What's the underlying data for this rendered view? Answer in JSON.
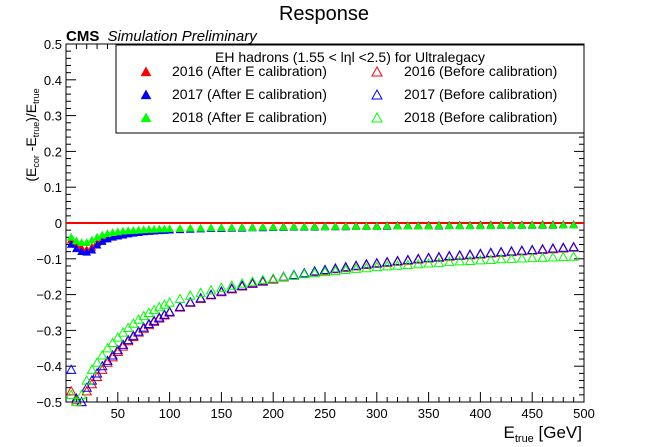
{
  "chart_data": {
    "type": "scatter",
    "title": "Response",
    "experiment": "CMS",
    "subtitle": "Simulation Preliminary",
    "legend_header": "EH hadrons (1.55 < lηl <2.5) for Ultralegacy",
    "xlabel_main": "E",
    "xlabel_sub": "true",
    "xlabel_unit": " [GeV]",
    "ylabel": "(E_cor-E_true)/E_true",
    "xlim": [
      0,
      500
    ],
    "ylim": [
      -0.5,
      0.5
    ],
    "xticks": [
      50,
      100,
      150,
      200,
      250,
      300,
      350,
      400,
      450,
      500
    ],
    "yticks": [
      -0.5,
      -0.4,
      -0.3,
      -0.2,
      -0.1,
      0,
      0.1,
      0.2,
      0.3,
      0.4,
      0.5
    ],
    "ytick_labels": [
      "−0.5",
      "−0.4",
      "−0.3",
      "−0.2",
      "−0.1",
      "0",
      "0.1",
      "0.2",
      "0.3",
      "0.4",
      "0.5"
    ],
    "reference_line": {
      "y": 0,
      "color": "#ff0000"
    },
    "legend_position": "top-right",
    "grid": false,
    "series": [
      {
        "name": "2016 (After E calibration)",
        "color": "#ff0000",
        "marker": "filled-triangle",
        "x": [
          5,
          10,
          15,
          20,
          25,
          30,
          35,
          40,
          45,
          50,
          55,
          60,
          65,
          70,
          75,
          80,
          85,
          90,
          95,
          100,
          110,
          120,
          130,
          140,
          150,
          160,
          170,
          180,
          190,
          200,
          210,
          220,
          230,
          240,
          250,
          260,
          270,
          280,
          290,
          300,
          310,
          320,
          330,
          340,
          350,
          360,
          370,
          380,
          390,
          400,
          410,
          420,
          430,
          440,
          450,
          460,
          470,
          480,
          490
        ],
        "y": [
          -0.048,
          -0.06,
          -0.07,
          -0.075,
          -0.068,
          -0.055,
          -0.046,
          -0.04,
          -0.036,
          -0.033,
          -0.03,
          -0.028,
          -0.026,
          -0.024,
          -0.022,
          -0.021,
          -0.02,
          -0.019,
          -0.018,
          -0.017,
          -0.016,
          -0.015,
          -0.015,
          -0.014,
          -0.013,
          -0.013,
          -0.012,
          -0.012,
          -0.011,
          -0.011,
          -0.01,
          -0.01,
          -0.01,
          -0.009,
          -0.009,
          -0.009,
          -0.008,
          -0.008,
          -0.008,
          -0.008,
          -0.007,
          -0.007,
          -0.007,
          -0.007,
          -0.006,
          -0.006,
          -0.006,
          -0.006,
          -0.006,
          -0.005,
          -0.005,
          -0.005,
          -0.005,
          -0.005,
          -0.005,
          -0.004,
          -0.004,
          -0.004,
          -0.004
        ]
      },
      {
        "name": "2017 (After E calibration)",
        "color": "#0000ff",
        "marker": "filled-triangle",
        "x": [
          5,
          10,
          15,
          20,
          25,
          30,
          35,
          40,
          45,
          50,
          55,
          60,
          65,
          70,
          75,
          80,
          85,
          90,
          95,
          100,
          110,
          120,
          130,
          140,
          150,
          160,
          170,
          180,
          190,
          200,
          210,
          220,
          230,
          240,
          250,
          260,
          270,
          280,
          290,
          300,
          310,
          320,
          330,
          340,
          350,
          360,
          370,
          380,
          390,
          400,
          410,
          420,
          430,
          440,
          450,
          460,
          470,
          480,
          490
        ],
        "y": [
          -0.06,
          -0.072,
          -0.08,
          -0.082,
          -0.076,
          -0.062,
          -0.052,
          -0.045,
          -0.04,
          -0.037,
          -0.034,
          -0.031,
          -0.029,
          -0.027,
          -0.025,
          -0.024,
          -0.023,
          -0.022,
          -0.021,
          -0.02,
          -0.019,
          -0.018,
          -0.017,
          -0.016,
          -0.016,
          -0.015,
          -0.015,
          -0.014,
          -0.014,
          -0.013,
          -0.013,
          -0.012,
          -0.012,
          -0.012,
          -0.011,
          -0.011,
          -0.011,
          -0.01,
          -0.01,
          -0.01,
          -0.01,
          -0.009,
          -0.009,
          -0.009,
          -0.009,
          -0.009,
          -0.008,
          -0.008,
          -0.008,
          -0.008,
          -0.008,
          -0.007,
          -0.007,
          -0.007,
          -0.007,
          -0.007,
          -0.007,
          -0.006,
          -0.006
        ]
      },
      {
        "name": "2018 (After E calibration)",
        "color": "#00ff00",
        "marker": "filled-triangle",
        "x": [
          5,
          10,
          15,
          20,
          25,
          30,
          35,
          40,
          45,
          50,
          55,
          60,
          65,
          70,
          75,
          80,
          85,
          90,
          95,
          100,
          110,
          120,
          130,
          140,
          150,
          160,
          170,
          180,
          190,
          200,
          210,
          220,
          230,
          240,
          250,
          260,
          270,
          280,
          290,
          300,
          310,
          320,
          330,
          340,
          350,
          360,
          370,
          380,
          390,
          400,
          410,
          420,
          430,
          440,
          450,
          460,
          470,
          480,
          490
        ],
        "y": [
          -0.04,
          -0.05,
          -0.055,
          -0.055,
          -0.048,
          -0.04,
          -0.034,
          -0.03,
          -0.027,
          -0.025,
          -0.023,
          -0.022,
          -0.021,
          -0.02,
          -0.019,
          -0.018,
          -0.018,
          -0.017,
          -0.017,
          -0.016,
          -0.016,
          -0.015,
          -0.015,
          -0.014,
          -0.014,
          -0.013,
          -0.013,
          -0.013,
          -0.012,
          -0.012,
          -0.012,
          -0.011,
          -0.011,
          -0.011,
          -0.011,
          -0.01,
          -0.01,
          -0.01,
          -0.01,
          -0.01,
          -0.009,
          -0.009,
          -0.009,
          -0.009,
          -0.009,
          -0.008,
          -0.008,
          -0.008,
          -0.008,
          -0.008,
          -0.008,
          -0.007,
          -0.007,
          -0.007,
          -0.007,
          -0.007,
          -0.007,
          -0.006,
          -0.006
        ]
      },
      {
        "name": "2016 (Before calibration)",
        "color": "#ff0000",
        "marker": "open-triangle",
        "x": [
          5,
          10,
          15,
          20,
          25,
          30,
          35,
          40,
          45,
          50,
          55,
          60,
          65,
          70,
          75,
          80,
          85,
          90,
          95,
          100,
          110,
          120,
          130,
          140,
          150,
          160,
          170,
          180,
          190,
          200,
          210,
          220,
          230,
          240,
          250,
          260,
          270,
          280,
          290,
          300,
          310,
          320,
          330,
          340,
          350,
          360,
          370,
          380,
          390,
          400,
          410,
          420,
          430,
          440,
          450,
          460,
          470,
          480,
          490
        ],
        "y": [
          -0.47,
          -0.495,
          -0.5,
          -0.47,
          -0.45,
          -0.43,
          -0.41,
          -0.39,
          -0.375,
          -0.36,
          -0.345,
          -0.33,
          -0.318,
          -0.306,
          -0.295,
          -0.285,
          -0.276,
          -0.267,
          -0.258,
          -0.25,
          -0.236,
          -0.223,
          -0.212,
          -0.202,
          -0.193,
          -0.185,
          -0.177,
          -0.17,
          -0.164,
          -0.158,
          -0.152,
          -0.147,
          -0.142,
          -0.137,
          -0.133,
          -0.129,
          -0.125,
          -0.121,
          -0.117,
          -0.114,
          -0.111,
          -0.108,
          -0.105,
          -0.102,
          -0.099,
          -0.097,
          -0.094,
          -0.092,
          -0.09,
          -0.088,
          -0.085,
          -0.083,
          -0.081,
          -0.079,
          -0.077,
          -0.075,
          -0.073,
          -0.071,
          -0.069
        ]
      },
      {
        "name": "2017 (Before calibration)",
        "color": "#0000ff",
        "marker": "open-triangle",
        "x": [
          5,
          10,
          15,
          20,
          25,
          30,
          35,
          40,
          45,
          50,
          55,
          60,
          65,
          70,
          75,
          80,
          85,
          90,
          95,
          100,
          110,
          120,
          130,
          140,
          150,
          160,
          170,
          180,
          190,
          200,
          210,
          220,
          230,
          240,
          250,
          260,
          270,
          280,
          290,
          300,
          310,
          320,
          330,
          340,
          350,
          360,
          370,
          380,
          390,
          400,
          410,
          420,
          430,
          440,
          450,
          460,
          470,
          480,
          490
        ],
        "y": [
          -0.41,
          -0.49,
          -0.5,
          -0.46,
          -0.44,
          -0.42,
          -0.4,
          -0.385,
          -0.37,
          -0.355,
          -0.34,
          -0.327,
          -0.315,
          -0.303,
          -0.292,
          -0.282,
          -0.273,
          -0.264,
          -0.256,
          -0.248,
          -0.234,
          -0.221,
          -0.21,
          -0.2,
          -0.191,
          -0.183,
          -0.175,
          -0.168,
          -0.162,
          -0.156,
          -0.15,
          -0.145,
          -0.14,
          -0.135,
          -0.131,
          -0.127,
          -0.123,
          -0.119,
          -0.115,
          -0.112,
          -0.109,
          -0.106,
          -0.103,
          -0.1,
          -0.097,
          -0.095,
          -0.092,
          -0.09,
          -0.088,
          -0.086,
          -0.083,
          -0.081,
          -0.079,
          -0.077,
          -0.075,
          -0.073,
          -0.071,
          -0.069,
          -0.067
        ]
      },
      {
        "name": "2018 (Before calibration)",
        "color": "#00ff00",
        "marker": "open-triangle",
        "x": [
          5,
          10,
          15,
          20,
          25,
          30,
          35,
          40,
          45,
          50,
          55,
          60,
          65,
          70,
          75,
          80,
          85,
          90,
          95,
          100,
          110,
          120,
          130,
          140,
          150,
          160,
          170,
          180,
          190,
          200,
          210,
          220,
          230,
          240,
          250,
          260,
          270,
          280,
          290,
          300,
          310,
          320,
          330,
          340,
          350,
          360,
          370,
          380,
          390,
          400,
          410,
          420,
          430,
          440,
          450,
          460,
          470,
          480,
          490
        ],
        "y": [
          -0.48,
          -0.5,
          -0.48,
          -0.44,
          -0.41,
          -0.39,
          -0.37,
          -0.35,
          -0.335,
          -0.32,
          -0.306,
          -0.293,
          -0.281,
          -0.27,
          -0.26,
          -0.251,
          -0.243,
          -0.235,
          -0.228,
          -0.222,
          -0.212,
          -0.203,
          -0.195,
          -0.188,
          -0.181,
          -0.175,
          -0.169,
          -0.164,
          -0.159,
          -0.155,
          -0.151,
          -0.147,
          -0.143,
          -0.14,
          -0.137,
          -0.134,
          -0.131,
          -0.128,
          -0.126,
          -0.123,
          -0.121,
          -0.119,
          -0.117,
          -0.115,
          -0.113,
          -0.111,
          -0.109,
          -0.107,
          -0.106,
          -0.104,
          -0.103,
          -0.101,
          -0.1,
          -0.099,
          -0.098,
          -0.097,
          -0.096,
          -0.095,
          -0.094
        ]
      }
    ]
  }
}
